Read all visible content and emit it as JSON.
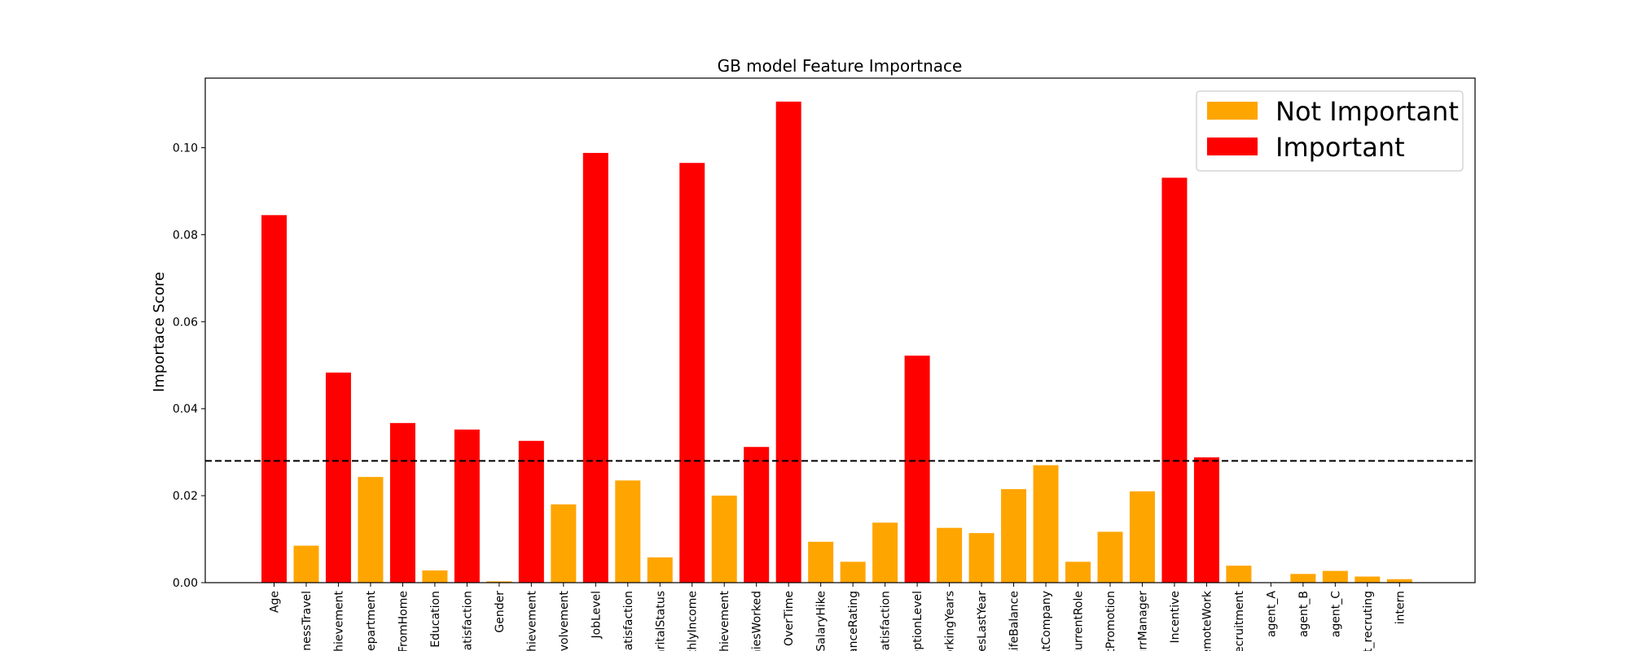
{
  "chart_data": {
    "type": "bar",
    "title": "GB model Feature Importnace",
    "xlabel": "",
    "ylabel": "Importace Score",
    "ylim": [
      0,
      0.116
    ],
    "yticks": [
      0.0,
      0.02,
      0.04,
      0.06,
      0.08,
      0.1
    ],
    "ytick_labels": [
      "0.00",
      "0.02",
      "0.04",
      "0.06",
      "0.08",
      "0.10"
    ],
    "threshold": 0.028,
    "grid": false,
    "legend_position": "top-right",
    "legend": [
      {
        "label": "Not Important",
        "color": "#FFA500"
      },
      {
        "label": "Important",
        "color": "#FF0000"
      }
    ],
    "categories": [
      "Age",
      "inessTravel",
      "hievement",
      "epartment",
      "FromHome",
      "Education",
      "iatisfaction",
      "Gender",
      "hievement",
      "nvolvement",
      "JobLevel",
      "Satisfaction",
      "aritalStatus",
      "thlyIncome",
      "hievement",
      "niesWorked",
      "OverTime",
      "SalaryHike",
      "anceRating",
      "iatisfaction",
      "OptionLevel",
      "orkingYears",
      "nesLastYear",
      "LifeBalance",
      "AtCompany",
      "CurrentRole",
      "tPromotion",
      "urrManager",
      "Incentive",
      "emoteWork",
      "ecruitment",
      "agent_A",
      "agent_B",
      "agent_C",
      "t_recruting",
      "intern"
    ],
    "values": [
      0.0845,
      0.0085,
      0.0483,
      0.0243,
      0.0367,
      0.0028,
      0.0352,
      0.0003,
      0.0326,
      0.018,
      0.0988,
      0.0235,
      0.0058,
      0.0965,
      0.02,
      0.0312,
      0.1106,
      0.0094,
      0.0048,
      0.0138,
      0.0522,
      0.0126,
      0.0114,
      0.0215,
      0.027,
      0.0048,
      0.0117,
      0.021,
      0.0931,
      0.0288,
      0.0039,
      0.0,
      0.002,
      0.0027,
      0.0014,
      0.0008
    ],
    "colors": {
      "important": "#FF0000",
      "not_important": "#FFA500",
      "threshold_line": "#000000"
    }
  }
}
